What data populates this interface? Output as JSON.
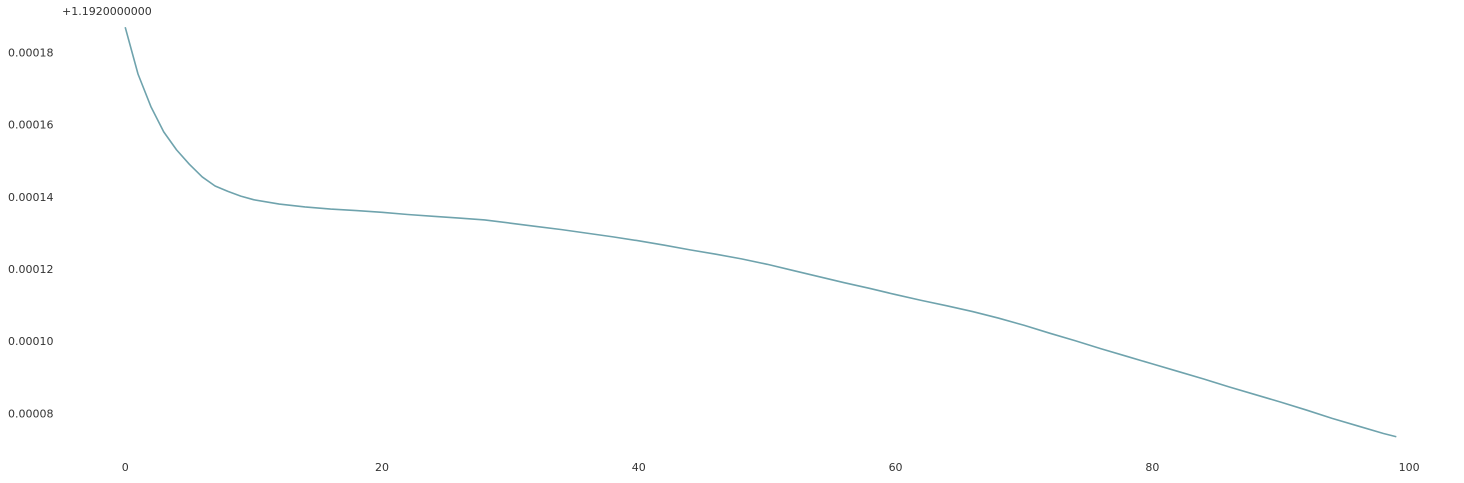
{
  "chart_data": {
    "type": "line",
    "title": "",
    "xlabel": "",
    "ylabel": "",
    "y_offset_label": "+1.1920000000",
    "grid": false,
    "xlim": [
      -5,
      101
    ],
    "ylim": [
      6.9e-05,
      0.000189
    ],
    "x_ticks": [
      0,
      20,
      40,
      60,
      80,
      100
    ],
    "x_tick_labels": [
      "0",
      "20",
      "40",
      "60",
      "80",
      "100"
    ],
    "y_ticks": [
      8e-05,
      0.0001,
      0.00012,
      0.00014,
      0.00016,
      0.00018
    ],
    "y_tick_labels": [
      "0.00008",
      "0.00010",
      "0.00012",
      "0.00014",
      "0.00016",
      "0.00018"
    ],
    "line_color": "#6fa3ad",
    "series": [
      {
        "x": [
          0,
          1,
          2,
          3,
          4,
          5,
          6,
          7,
          8,
          9,
          10,
          12,
          14,
          16,
          18,
          20,
          22,
          24,
          26,
          28,
          30,
          32,
          34,
          36,
          38,
          40,
          42,
          44,
          46,
          48,
          50,
          52,
          54,
          56,
          58,
          60,
          62,
          64,
          66,
          68,
          70,
          72,
          74,
          76,
          78,
          80,
          82,
          84,
          86,
          88,
          90,
          92,
          94,
          96,
          98,
          99
        ],
        "y": [
          0.000187,
          0.000174,
          0.000165,
          0.000158,
          0.000153,
          0.000149,
          0.0001455,
          0.000143,
          0.0001415,
          0.0001402,
          0.0001392,
          0.000138,
          0.0001372,
          0.0001366,
          0.0001362,
          0.0001357,
          0.0001351,
          0.0001346,
          0.0001341,
          0.0001336,
          0.0001327,
          0.0001318,
          0.0001309,
          0.0001299,
          0.0001289,
          0.0001278,
          0.0001266,
          0.0001253,
          0.0001241,
          0.0001228,
          0.0001213,
          0.0001196,
          0.0001179,
          0.0001162,
          0.0001146,
          0.0001129,
          0.0001113,
          0.0001098,
          0.0001082,
          0.0001064,
          0.0001044,
          0.0001022,
          0.0001001,
          9.79e-05,
          9.58e-05,
          9.37e-05,
          9.16e-05,
          8.95e-05,
          8.73e-05,
          8.52e-05,
          8.31e-05,
          8.09e-05,
          7.86e-05,
          7.65e-05,
          7.44e-05,
          7.35e-05
        ]
      }
    ]
  }
}
